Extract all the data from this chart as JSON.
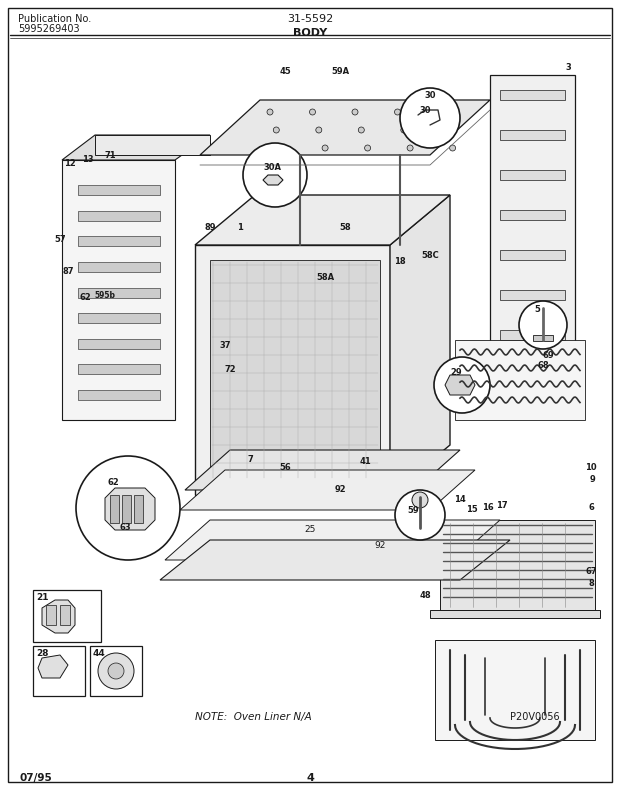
{
  "title_left_line1": "Publication No.",
  "title_left_line2": "5995269403",
  "title_center_top": "31-5592",
  "title_center_bottom": "BODY",
  "footer_left": "07/95",
  "footer_center": "4",
  "bg_color": "#ffffff",
  "text_color": "#1a1a1a",
  "footer_note": "NOTE:  Oven Liner N/A",
  "watermark": "P20V0056"
}
